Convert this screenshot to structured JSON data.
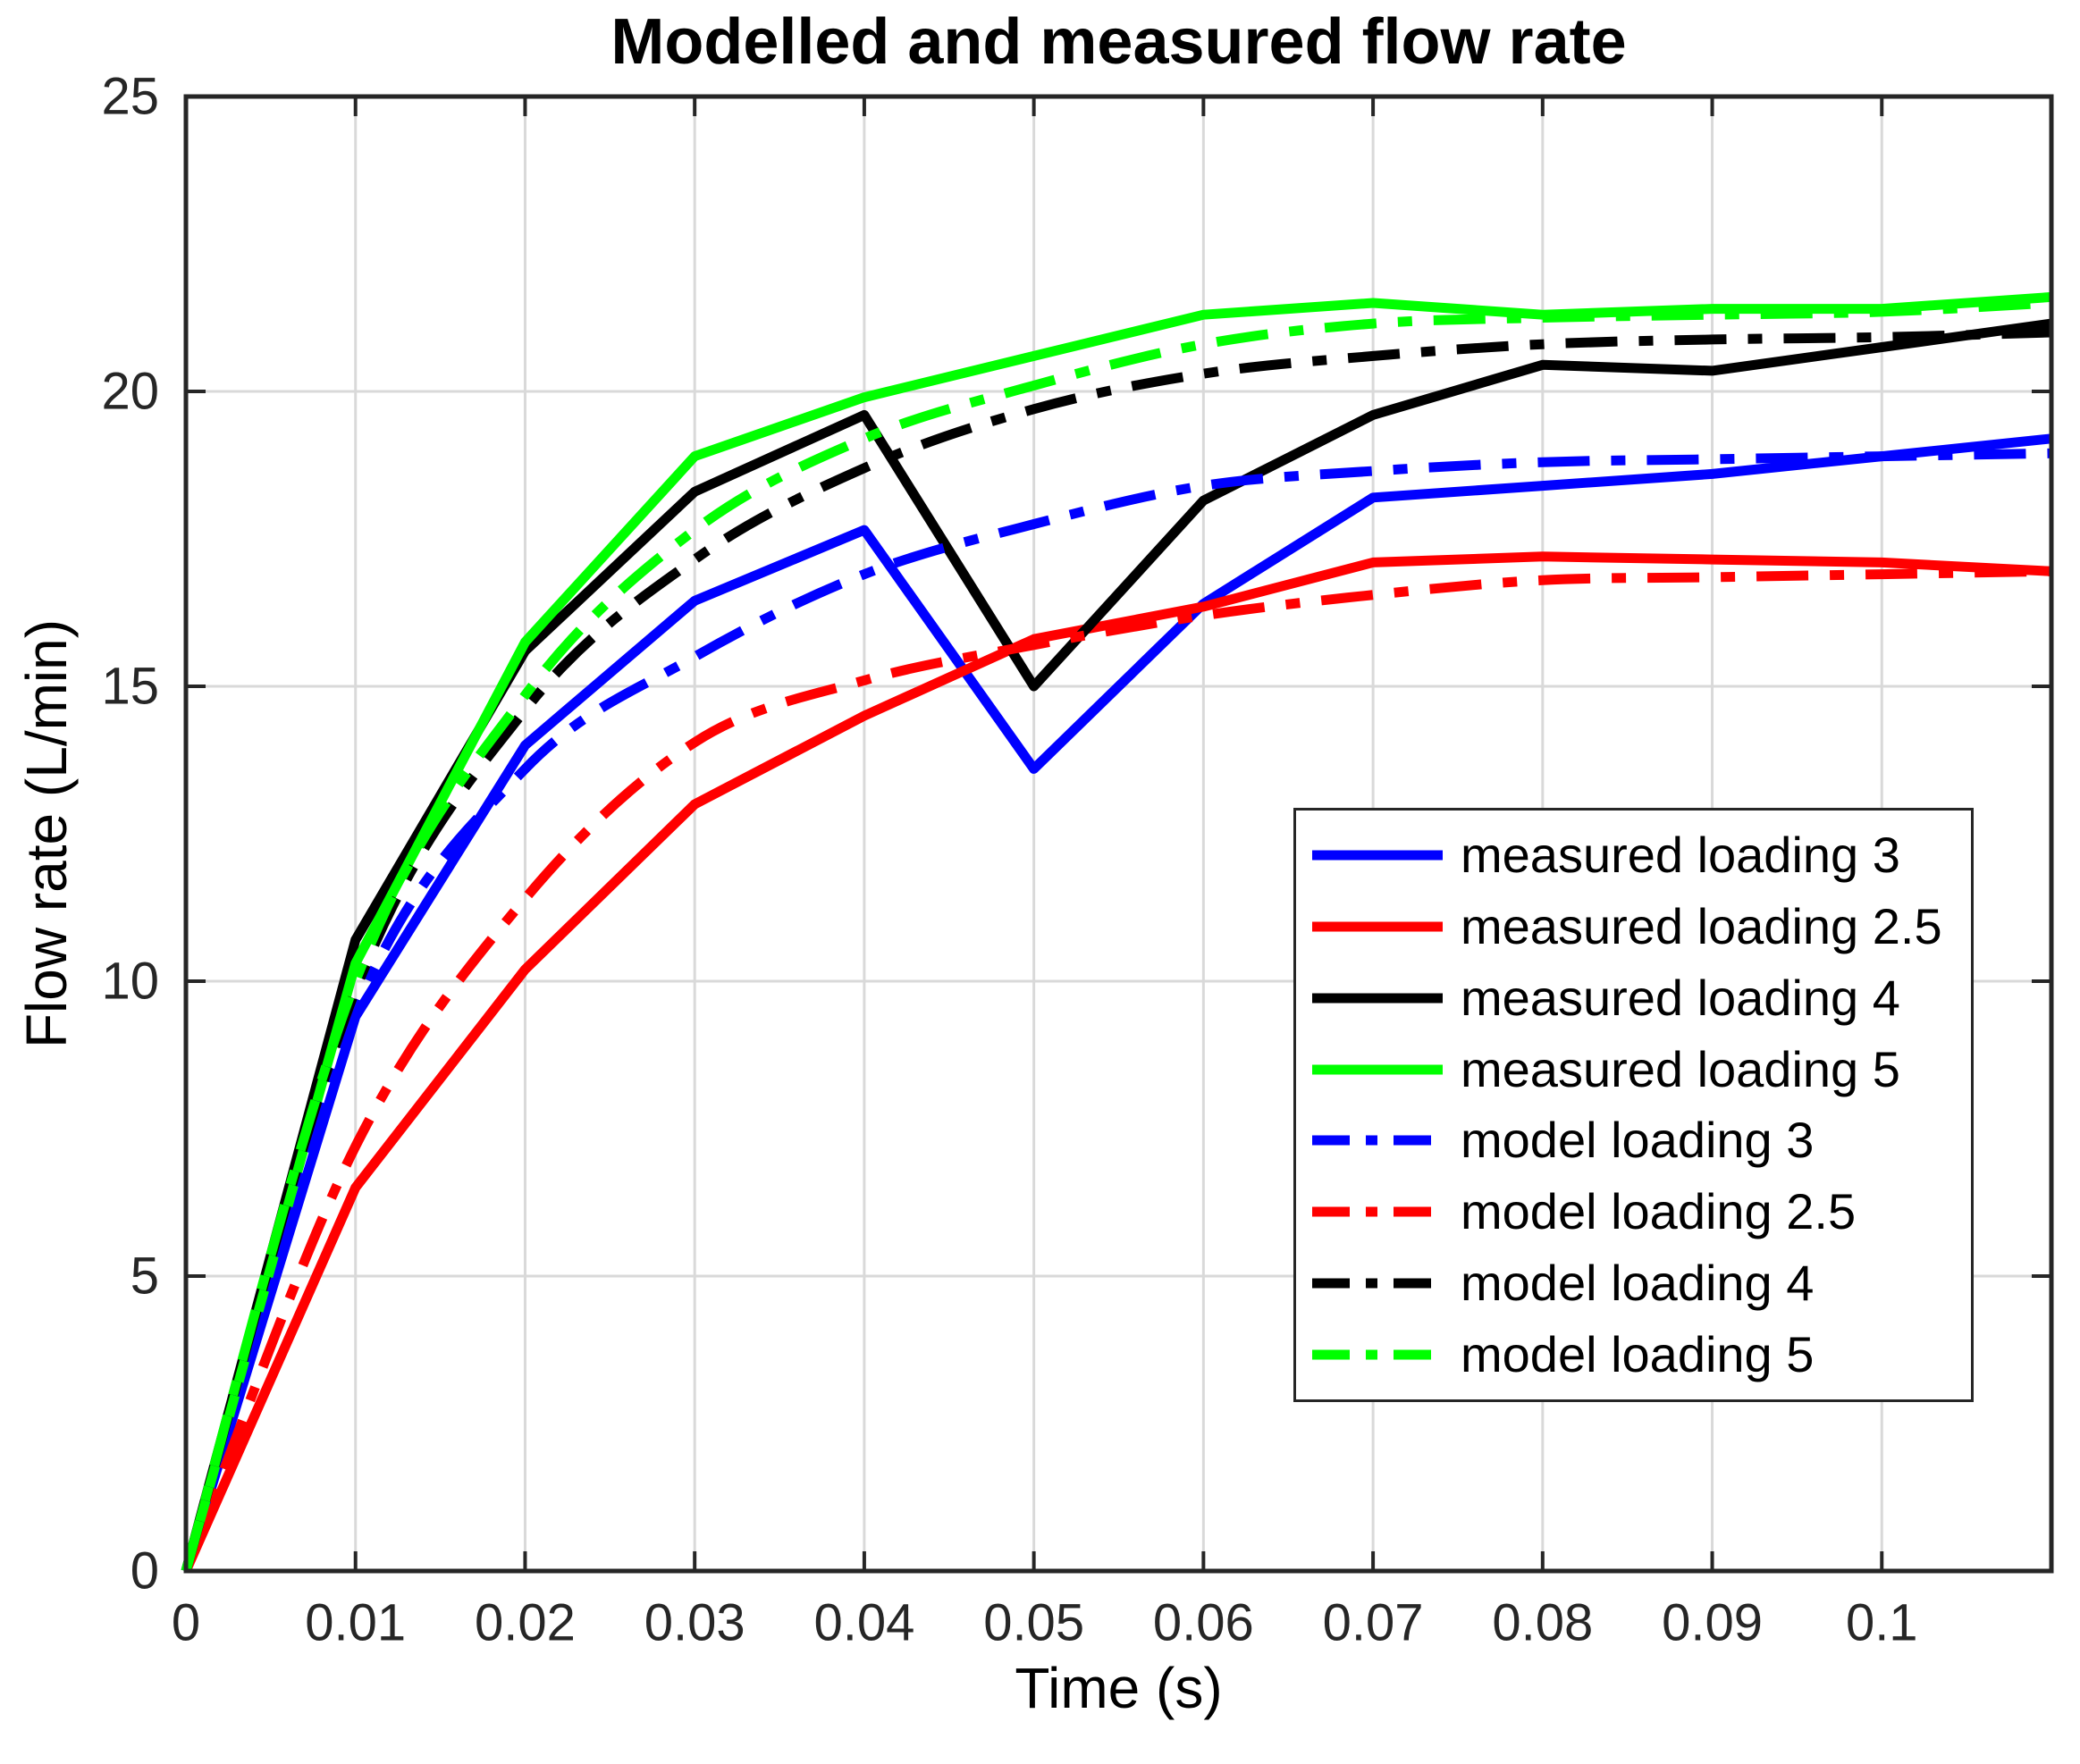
{
  "chart_data": {
    "type": "line",
    "title": "Modelled and measured flow rate",
    "xlabel": "Time (s)",
    "ylabel": "Flow rate (L/min)",
    "xlim": [
      0,
      0.11
    ],
    "ylim": [
      0,
      25
    ],
    "grid": true,
    "legend_position": "right-middle",
    "x_tick_values": [
      0,
      0.01,
      0.02,
      0.03,
      0.04,
      0.05,
      0.06,
      0.07,
      0.08,
      0.09,
      0.1
    ],
    "x_tick_labels": [
      "0",
      "0.01",
      "0.02",
      "0.03",
      "0.04",
      "0.05",
      "0.06",
      "0.07",
      "0.08",
      "0.09",
      "0.1"
    ],
    "y_tick_values": [
      0,
      5,
      10,
      15,
      20,
      25
    ],
    "y_tick_labels": [
      "0",
      "5",
      "10",
      "15",
      "20",
      "25"
    ],
    "x": [
      0,
      0.01,
      0.02,
      0.03,
      0.04,
      0.05,
      0.06,
      0.07,
      0.08,
      0.09,
      0.1,
      0.11
    ],
    "series": [
      {
        "name": "measured loading 3",
        "color": "#0000ff",
        "style": "solid",
        "smooth": false,
        "values": [
          0,
          9.4,
          14.0,
          16.45,
          17.65,
          13.6,
          16.4,
          18.2,
          18.4,
          18.6,
          18.9,
          19.2
        ]
      },
      {
        "name": "measured loading 2.5",
        "color": "#ff0000",
        "style": "solid",
        "smooth": false,
        "values": [
          0,
          6.5,
          10.2,
          13.0,
          14.5,
          15.8,
          16.35,
          17.1,
          17.2,
          17.15,
          17.1,
          16.95
        ]
      },
      {
        "name": "measured loading 4",
        "color": "#000000",
        "style": "solid",
        "smooth": false,
        "values": [
          0,
          10.7,
          15.6,
          18.3,
          19.6,
          15.0,
          18.15,
          19.6,
          20.45,
          20.35,
          20.75,
          21.15
        ]
      },
      {
        "name": "measured loading 5",
        "color": "#00ff00",
        "style": "solid",
        "smooth": false,
        "values": [
          0,
          10.3,
          15.75,
          18.9,
          19.9,
          20.6,
          21.3,
          21.5,
          21.3,
          21.4,
          21.4,
          21.6
        ]
      },
      {
        "name": "model loading 3",
        "color": "#0000ff",
        "style": "dashdot",
        "smooth": true,
        "values": [
          0,
          9.5,
          13.6,
          15.5,
          16.9,
          17.75,
          18.4,
          18.65,
          18.8,
          18.85,
          18.9,
          18.95
        ]
      },
      {
        "name": "model loading 2.5",
        "color": "#ff0000",
        "style": "dashdot",
        "smooth": true,
        "values": [
          0,
          7.2,
          11.4,
          14.05,
          15.1,
          15.7,
          16.2,
          16.55,
          16.8,
          16.85,
          16.9,
          16.95
        ]
      },
      {
        "name": "model loading 4",
        "color": "#000000",
        "style": "dashdot",
        "smooth": true,
        "values": [
          0,
          9.85,
          14.6,
          17.15,
          18.7,
          19.7,
          20.3,
          20.6,
          20.8,
          20.88,
          20.92,
          21.0
        ]
      },
      {
        "name": "model loading 5",
        "color": "#00ff00",
        "style": "dashdot",
        "smooth": true,
        "values": [
          0,
          10.0,
          14.85,
          17.65,
          19.2,
          20.1,
          20.8,
          21.15,
          21.25,
          21.3,
          21.35,
          21.5
        ]
      }
    ]
  },
  "colors": {
    "axis": "#262626",
    "grid": "#d9d9d9",
    "background": "#ffffff",
    "title_text": "#000000"
  }
}
